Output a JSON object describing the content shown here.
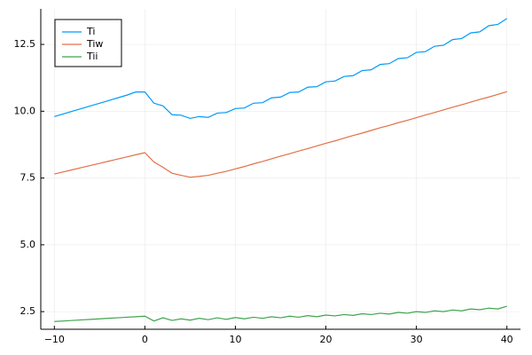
{
  "chart_data": {
    "type": "line",
    "x": [
      -10,
      -9,
      -8,
      -7,
      -6,
      -5,
      -4,
      -3,
      -2,
      -1,
      0,
      1,
      2,
      3,
      4,
      5,
      6,
      7,
      8,
      9,
      10,
      11,
      12,
      13,
      14,
      15,
      16,
      17,
      18,
      19,
      20,
      21,
      22,
      23,
      24,
      25,
      26,
      27,
      28,
      29,
      30,
      31,
      32,
      33,
      34,
      35,
      36,
      37,
      38,
      39,
      40
    ],
    "series": [
      {
        "name": "Ti",
        "color": "#009afa",
        "values": [
          9.8,
          9.9,
          10.0,
          10.1,
          10.2,
          10.3,
          10.4,
          10.5,
          10.6,
          10.72,
          10.72,
          10.3,
          10.2,
          9.87,
          9.85,
          9.73,
          9.8,
          9.77,
          9.93,
          9.95,
          10.1,
          10.12,
          10.3,
          10.32,
          10.5,
          10.53,
          10.7,
          10.72,
          10.9,
          10.92,
          11.1,
          11.13,
          11.3,
          11.33,
          11.52,
          11.55,
          11.75,
          11.78,
          11.97,
          12.0,
          12.2,
          12.23,
          12.43,
          12.47,
          12.68,
          12.72,
          12.93,
          12.97,
          13.2,
          13.25,
          13.47
        ]
      },
      {
        "name": "Tiw",
        "color": "#e36f47",
        "values": [
          7.65,
          7.73,
          7.81,
          7.89,
          7.97,
          8.05,
          8.13,
          8.21,
          8.29,
          8.37,
          8.45,
          8.1,
          7.9,
          7.68,
          7.6,
          7.53,
          7.56,
          7.6,
          7.68,
          7.75,
          7.84,
          7.93,
          8.03,
          8.12,
          8.22,
          8.32,
          8.41,
          8.51,
          8.6,
          8.7,
          8.8,
          8.89,
          8.99,
          9.09,
          9.18,
          9.28,
          9.38,
          9.47,
          9.57,
          9.66,
          9.76,
          9.86,
          9.95,
          10.05,
          10.15,
          10.24,
          10.34,
          10.44,
          10.53,
          10.63,
          10.73
        ]
      },
      {
        "name": "Tii",
        "color": "#3ea44e",
        "values": [
          2.13,
          2.15,
          2.17,
          2.19,
          2.21,
          2.23,
          2.25,
          2.27,
          2.29,
          2.31,
          2.33,
          2.15,
          2.27,
          2.17,
          2.23,
          2.18,
          2.25,
          2.2,
          2.27,
          2.21,
          2.28,
          2.23,
          2.29,
          2.25,
          2.31,
          2.27,
          2.33,
          2.29,
          2.35,
          2.31,
          2.37,
          2.34,
          2.39,
          2.36,
          2.42,
          2.39,
          2.44,
          2.41,
          2.47,
          2.44,
          2.5,
          2.47,
          2.53,
          2.5,
          2.56,
          2.53,
          2.6,
          2.57,
          2.63,
          2.6,
          2.7
        ]
      }
    ],
    "xlim": [
      -11.5,
      41.5
    ],
    "xticks": [
      {
        "value": -10,
        "label": "−10"
      },
      0,
      10,
      20,
      30,
      40
    ],
    "ylim": [
      1.84,
      13.83
    ],
    "yticks": [
      2.5,
      {
        "value": 5,
        "label": "5.0"
      },
      7.5,
      {
        "value": 10,
        "label": "10.0"
      },
      12.5
    ],
    "grid": true,
    "legend": "top-left"
  }
}
